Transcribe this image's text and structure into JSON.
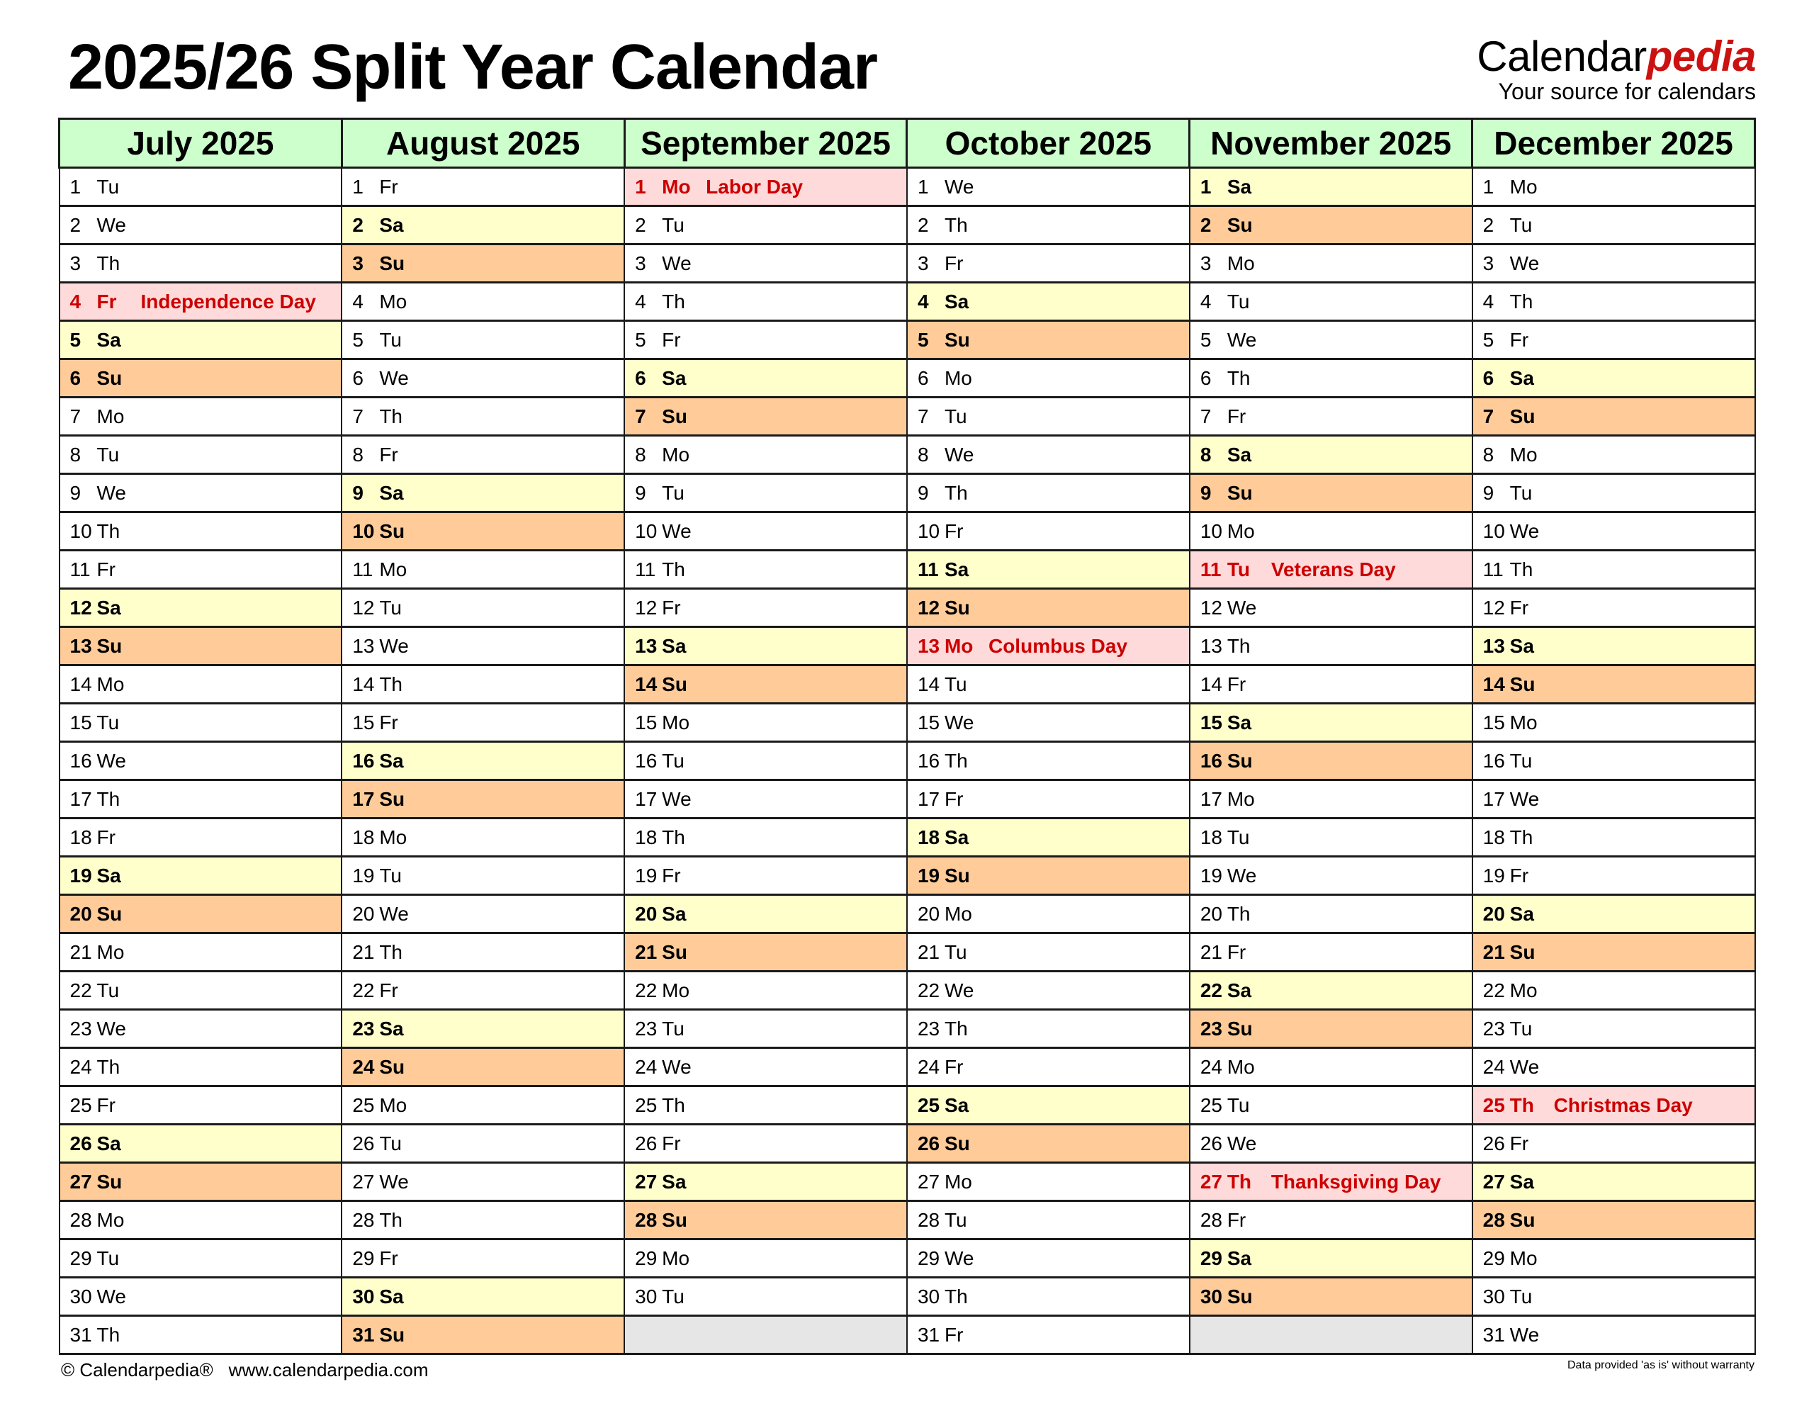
{
  "title": "2025/26 Split Year Calendar",
  "logo": {
    "brand_main": "Calendar",
    "brand_accent": "pedia",
    "tagline": "Your source for calendars"
  },
  "footer": {
    "copyright": "© Calendarpedia®",
    "url": "www.calendarpedia.com",
    "disclaimer": "Data provided 'as is' without warranty"
  },
  "colors": {
    "header": "#ccffcc",
    "saturday": "#ffffcc",
    "sunday": "#ffcc99",
    "holiday_bg": "#ffdada",
    "holiday_text": "#cc0000",
    "empty": "#e6e6e6"
  },
  "months": [
    {
      "name": "July 2025",
      "holidays": {
        "4": "Independence Day"
      },
      "days": [
        [
          "1",
          "Tu"
        ],
        [
          "2",
          "We"
        ],
        [
          "3",
          "Th"
        ],
        [
          "4",
          "Fr"
        ],
        [
          "5",
          "Sa"
        ],
        [
          "6",
          "Su"
        ],
        [
          "7",
          "Mo"
        ],
        [
          "8",
          "Tu"
        ],
        [
          "9",
          "We"
        ],
        [
          "10",
          "Th"
        ],
        [
          "11",
          "Fr"
        ],
        [
          "12",
          "Sa"
        ],
        [
          "13",
          "Su"
        ],
        [
          "14",
          "Mo"
        ],
        [
          "15",
          "Tu"
        ],
        [
          "16",
          "We"
        ],
        [
          "17",
          "Th"
        ],
        [
          "18",
          "Fr"
        ],
        [
          "19",
          "Sa"
        ],
        [
          "20",
          "Su"
        ],
        [
          "21",
          "Mo"
        ],
        [
          "22",
          "Tu"
        ],
        [
          "23",
          "We"
        ],
        [
          "24",
          "Th"
        ],
        [
          "25",
          "Fr"
        ],
        [
          "26",
          "Sa"
        ],
        [
          "27",
          "Su"
        ],
        [
          "28",
          "Mo"
        ],
        [
          "29",
          "Tu"
        ],
        [
          "30",
          "We"
        ],
        [
          "31",
          "Th"
        ]
      ]
    },
    {
      "name": "August 2025",
      "holidays": {},
      "days": [
        [
          "1",
          "Fr"
        ],
        [
          "2",
          "Sa"
        ],
        [
          "3",
          "Su"
        ],
        [
          "4",
          "Mo"
        ],
        [
          "5",
          "Tu"
        ],
        [
          "6",
          "We"
        ],
        [
          "7",
          "Th"
        ],
        [
          "8",
          "Fr"
        ],
        [
          "9",
          "Sa"
        ],
        [
          "10",
          "Su"
        ],
        [
          "11",
          "Mo"
        ],
        [
          "12",
          "Tu"
        ],
        [
          "13",
          "We"
        ],
        [
          "14",
          "Th"
        ],
        [
          "15",
          "Fr"
        ],
        [
          "16",
          "Sa"
        ],
        [
          "17",
          "Su"
        ],
        [
          "18",
          "Mo"
        ],
        [
          "19",
          "Tu"
        ],
        [
          "20",
          "We"
        ],
        [
          "21",
          "Th"
        ],
        [
          "22",
          "Fr"
        ],
        [
          "23",
          "Sa"
        ],
        [
          "24",
          "Su"
        ],
        [
          "25",
          "Mo"
        ],
        [
          "26",
          "Tu"
        ],
        [
          "27",
          "We"
        ],
        [
          "28",
          "Th"
        ],
        [
          "29",
          "Fr"
        ],
        [
          "30",
          "Sa"
        ],
        [
          "31",
          "Su"
        ]
      ]
    },
    {
      "name": "September 2025",
      "holidays": {
        "1": "Labor Day"
      },
      "days": [
        [
          "1",
          "Mo"
        ],
        [
          "2",
          "Tu"
        ],
        [
          "3",
          "We"
        ],
        [
          "4",
          "Th"
        ],
        [
          "5",
          "Fr"
        ],
        [
          "6",
          "Sa"
        ],
        [
          "7",
          "Su"
        ],
        [
          "8",
          "Mo"
        ],
        [
          "9",
          "Tu"
        ],
        [
          "10",
          "We"
        ],
        [
          "11",
          "Th"
        ],
        [
          "12",
          "Fr"
        ],
        [
          "13",
          "Sa"
        ],
        [
          "14",
          "Su"
        ],
        [
          "15",
          "Mo"
        ],
        [
          "16",
          "Tu"
        ],
        [
          "17",
          "We"
        ],
        [
          "18",
          "Th"
        ],
        [
          "19",
          "Fr"
        ],
        [
          "20",
          "Sa"
        ],
        [
          "21",
          "Su"
        ],
        [
          "22",
          "Mo"
        ],
        [
          "23",
          "Tu"
        ],
        [
          "24",
          "We"
        ],
        [
          "25",
          "Th"
        ],
        [
          "26",
          "Fr"
        ],
        [
          "27",
          "Sa"
        ],
        [
          "28",
          "Su"
        ],
        [
          "29",
          "Mo"
        ],
        [
          "30",
          "Tu"
        ]
      ]
    },
    {
      "name": "October 2025",
      "holidays": {
        "13": "Columbus Day"
      },
      "days": [
        [
          "1",
          "We"
        ],
        [
          "2",
          "Th"
        ],
        [
          "3",
          "Fr"
        ],
        [
          "4",
          "Sa"
        ],
        [
          "5",
          "Su"
        ],
        [
          "6",
          "Mo"
        ],
        [
          "7",
          "Tu"
        ],
        [
          "8",
          "We"
        ],
        [
          "9",
          "Th"
        ],
        [
          "10",
          "Fr"
        ],
        [
          "11",
          "Sa"
        ],
        [
          "12",
          "Su"
        ],
        [
          "13",
          "Mo"
        ],
        [
          "14",
          "Tu"
        ],
        [
          "15",
          "We"
        ],
        [
          "16",
          "Th"
        ],
        [
          "17",
          "Fr"
        ],
        [
          "18",
          "Sa"
        ],
        [
          "19",
          "Su"
        ],
        [
          "20",
          "Mo"
        ],
        [
          "21",
          "Tu"
        ],
        [
          "22",
          "We"
        ],
        [
          "23",
          "Th"
        ],
        [
          "24",
          "Fr"
        ],
        [
          "25",
          "Sa"
        ],
        [
          "26",
          "Su"
        ],
        [
          "27",
          "Mo"
        ],
        [
          "28",
          "Tu"
        ],
        [
          "29",
          "We"
        ],
        [
          "30",
          "Th"
        ],
        [
          "31",
          "Fr"
        ]
      ]
    },
    {
      "name": "November 2025",
      "holidays": {
        "11": "Veterans Day",
        "27": "Thanksgiving Day"
      },
      "days": [
        [
          "1",
          "Sa"
        ],
        [
          "2",
          "Su"
        ],
        [
          "3",
          "Mo"
        ],
        [
          "4",
          "Tu"
        ],
        [
          "5",
          "We"
        ],
        [
          "6",
          "Th"
        ],
        [
          "7",
          "Fr"
        ],
        [
          "8",
          "Sa"
        ],
        [
          "9",
          "Su"
        ],
        [
          "10",
          "Mo"
        ],
        [
          "11",
          "Tu"
        ],
        [
          "12",
          "We"
        ],
        [
          "13",
          "Th"
        ],
        [
          "14",
          "Fr"
        ],
        [
          "15",
          "Sa"
        ],
        [
          "16",
          "Su"
        ],
        [
          "17",
          "Mo"
        ],
        [
          "18",
          "Tu"
        ],
        [
          "19",
          "We"
        ],
        [
          "20",
          "Th"
        ],
        [
          "21",
          "Fr"
        ],
        [
          "22",
          "Sa"
        ],
        [
          "23",
          "Su"
        ],
        [
          "24",
          "Mo"
        ],
        [
          "25",
          "Tu"
        ],
        [
          "26",
          "We"
        ],
        [
          "27",
          "Th"
        ],
        [
          "28",
          "Fr"
        ],
        [
          "29",
          "Sa"
        ],
        [
          "30",
          "Su"
        ]
      ]
    },
    {
      "name": "December 2025",
      "holidays": {
        "25": "Christmas Day"
      },
      "days": [
        [
          "1",
          "Mo"
        ],
        [
          "2",
          "Tu"
        ],
        [
          "3",
          "We"
        ],
        [
          "4",
          "Th"
        ],
        [
          "5",
          "Fr"
        ],
        [
          "6",
          "Sa"
        ],
        [
          "7",
          "Su"
        ],
        [
          "8",
          "Mo"
        ],
        [
          "9",
          "Tu"
        ],
        [
          "10",
          "We"
        ],
        [
          "11",
          "Th"
        ],
        [
          "12",
          "Fr"
        ],
        [
          "13",
          "Sa"
        ],
        [
          "14",
          "Su"
        ],
        [
          "15",
          "Mo"
        ],
        [
          "16",
          "Tu"
        ],
        [
          "17",
          "We"
        ],
        [
          "18",
          "Th"
        ],
        [
          "19",
          "Fr"
        ],
        [
          "20",
          "Sa"
        ],
        [
          "21",
          "Su"
        ],
        [
          "22",
          "Mo"
        ],
        [
          "23",
          "Tu"
        ],
        [
          "24",
          "We"
        ],
        [
          "25",
          "Th"
        ],
        [
          "26",
          "Fr"
        ],
        [
          "27",
          "Sa"
        ],
        [
          "28",
          "Su"
        ],
        [
          "29",
          "Mo"
        ],
        [
          "30",
          "Tu"
        ],
        [
          "31",
          "We"
        ]
      ]
    }
  ]
}
